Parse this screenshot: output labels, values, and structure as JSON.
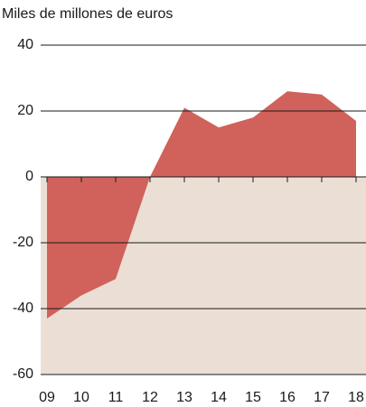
{
  "chart_data": {
    "type": "area",
    "title": "Miles de millones de euros",
    "categories": [
      "09",
      "10",
      "11",
      "12",
      "13",
      "14",
      "15",
      "16",
      "17",
      "18"
    ],
    "values": [
      -43,
      -36,
      -31,
      0,
      21,
      15,
      18,
      26,
      25,
      17
    ],
    "color": "#d0625b",
    "negative_band_color": "#ebdfd5",
    "ylim": [
      -60,
      40
    ],
    "yticks": [
      -60,
      -40,
      -20,
      0,
      20,
      40
    ],
    "grid": true
  }
}
